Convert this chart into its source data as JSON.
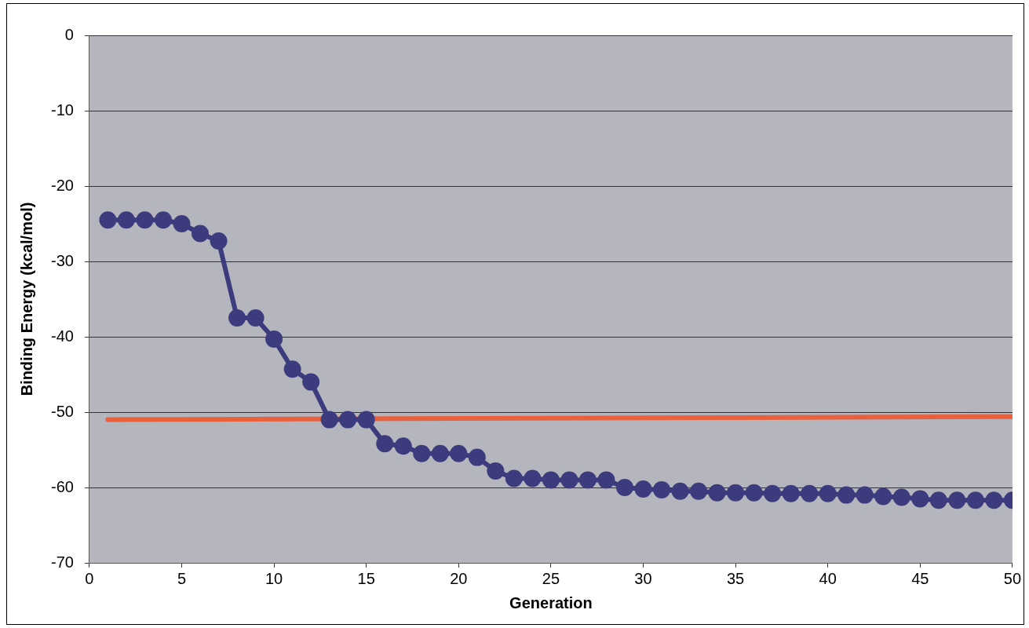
{
  "chart_data": {
    "type": "line",
    "xlabel": "Generation",
    "ylabel": "Binding Energy (kcal/mol)",
    "xlim": [
      0,
      50
    ],
    "xticks": [
      0,
      5,
      10,
      15,
      20,
      25,
      30,
      35,
      40,
      45,
      50
    ],
    "ylim": [
      -70,
      0
    ],
    "yticks": [
      -70,
      -60,
      -50,
      -40,
      -30,
      -20,
      -10,
      0
    ],
    "grid": "y",
    "legend": false,
    "marker": "circle",
    "series": [
      {
        "color": "#3b3b7e",
        "x": [
          1,
          2,
          3,
          4,
          5,
          6,
          7,
          8,
          9,
          10,
          11,
          12,
          13,
          14,
          15,
          16,
          17,
          18,
          19,
          20,
          21,
          22,
          23,
          24,
          25,
          26,
          27,
          28,
          29,
          30,
          31,
          32,
          33,
          34,
          35,
          36,
          37,
          38,
          39,
          40,
          41,
          42,
          43,
          44,
          45,
          46,
          47,
          48,
          49,
          50
        ],
        "values": [
          -24.5,
          -24.5,
          -24.5,
          -24.5,
          -25,
          -26.3,
          -27.3,
          -37.5,
          -37.5,
          -40.3,
          -44.3,
          -46,
          -51,
          -51,
          -51,
          -54.2,
          -54.5,
          -55.5,
          -55.5,
          -55.5,
          -56,
          -57.8,
          -58.8,
          -58.8,
          -59,
          -59,
          -59,
          -59,
          -60,
          -60.2,
          -60.3,
          -60.5,
          -60.5,
          -60.7,
          -60.7,
          -60.7,
          -60.8,
          -60.8,
          -60.8,
          -60.8,
          -61,
          -61,
          -61.2,
          -61.3,
          -61.5,
          -61.7,
          -61.7,
          -61.7,
          -61.7,
          -61.7
        ]
      },
      {
        "color": "#e8603c",
        "marker": "none",
        "x": [
          1,
          50
        ],
        "values": [
          -51,
          -50.6
        ]
      }
    ]
  }
}
